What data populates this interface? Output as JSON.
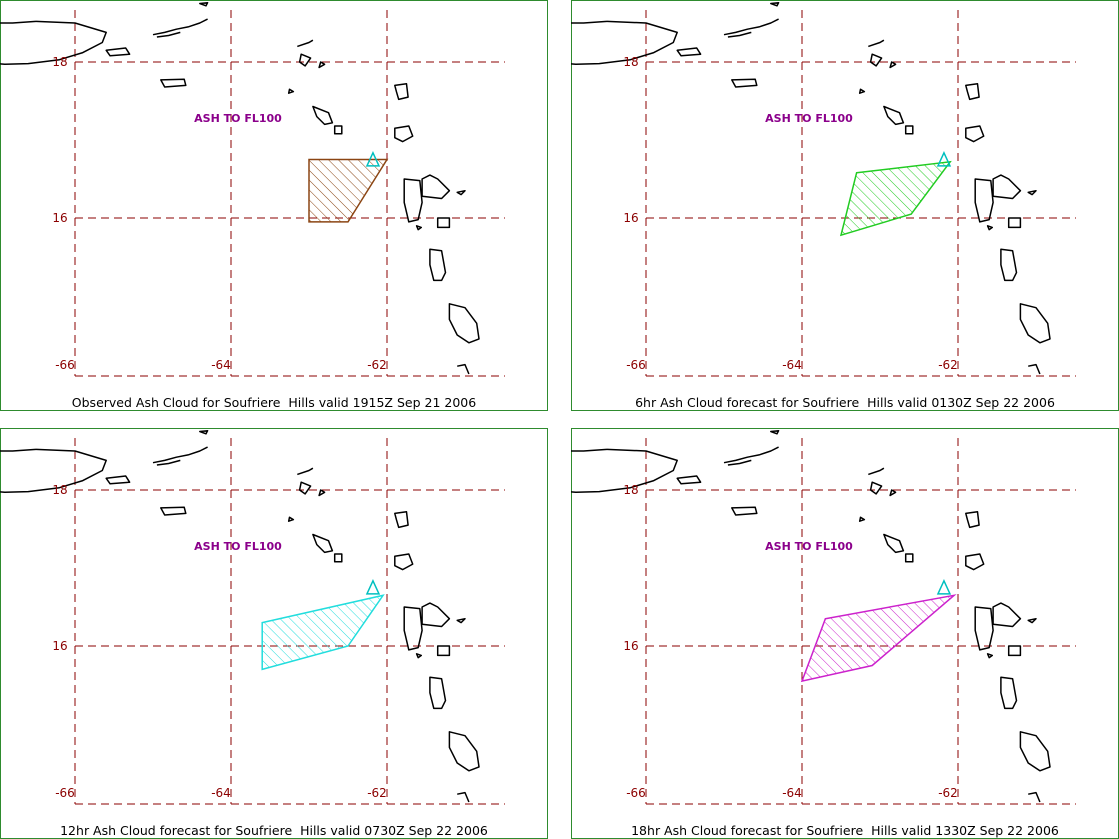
{
  "colors": {
    "border": "#2e8b2e",
    "grid": "#8b0000",
    "coast": "#000000",
    "label": "#8b008b",
    "volcano": "#00bfbf"
  },
  "panels": [
    {
      "label": "ASH TO FL100",
      "caption": "Observed Ash Cloud for Soufriere  Hills valid 1915Z Sep 21 2006",
      "cloud_color": "#8b4513",
      "cloud_polygon": [
        [
          -63.0,
          16.75
        ],
        [
          -62.0,
          16.75
        ],
        [
          -62.5,
          15.95
        ],
        [
          -63.0,
          15.95
        ]
      ]
    },
    {
      "label": "ASH TO FL100",
      "caption": "6hr Ash Cloud forecast for Soufriere  Hills valid 0130Z Sep 22 2006",
      "cloud_color": "#22cc22",
      "cloud_polygon": [
        [
          -63.3,
          16.58
        ],
        [
          -62.1,
          16.72
        ],
        [
          -62.6,
          16.05
        ],
        [
          -63.5,
          15.78
        ]
      ]
    },
    {
      "label": "ASH TO FL100",
      "caption": "12hr Ash Cloud forecast for Soufriere  Hills valid 0730Z Sep 22 2006",
      "cloud_color": "#22dddd",
      "cloud_polygon": [
        [
          -63.6,
          16.3
        ],
        [
          -62.05,
          16.65
        ],
        [
          -62.5,
          16.0
        ],
        [
          -63.6,
          15.7
        ]
      ]
    },
    {
      "label": "ASH TO FL100",
      "caption": "18hr Ash Cloud forecast for Soufriere  Hills valid 1330Z Sep 22 2006",
      "cloud_color": "#cc22cc",
      "cloud_polygon": [
        [
          -63.7,
          16.35
        ],
        [
          -62.05,
          16.65
        ],
        [
          -63.1,
          15.75
        ],
        [
          -64.0,
          15.55
        ]
      ]
    }
  ],
  "axes": {
    "lat_labels": [
      "18",
      "16"
    ],
    "lon_labels": [
      "-66",
      "-64",
      "-62"
    ]
  }
}
